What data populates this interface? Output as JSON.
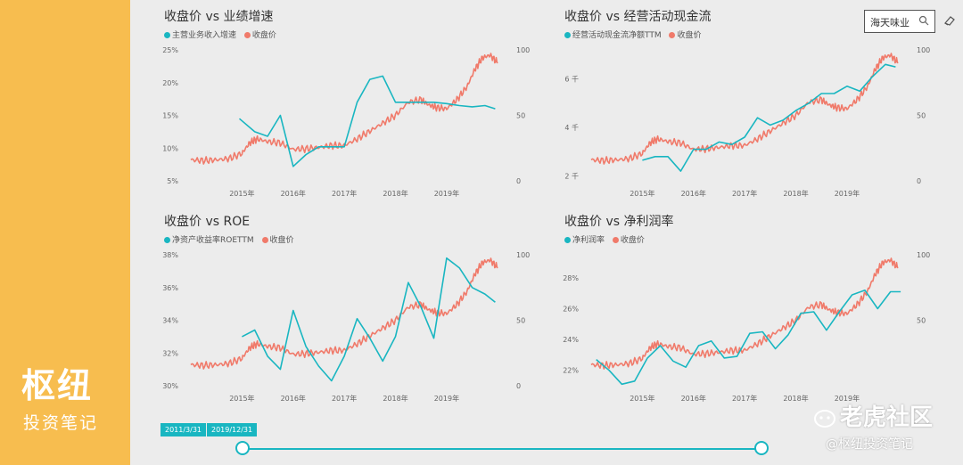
{
  "brand": {
    "title": "枢纽",
    "subtitle": "投资笔记"
  },
  "filter": {
    "value": "海天味业"
  },
  "slider": {
    "start": "2011/3/31",
    "end": "2019/12/31"
  },
  "watermark": {
    "site": "老虎社区",
    "handle": "@枢纽投资笔记"
  },
  "colors": {
    "teal": "#19b6c1",
    "salmon": "#f07a6a"
  },
  "chart_data": [
    {
      "type": "line",
      "title": "收盘价 vs 业绩增速",
      "legend": [
        "主营业务收入增速",
        "收盘价"
      ],
      "x_ticks": [
        "2015年",
        "2016年",
        "2017年",
        "2018年",
        "2019年"
      ],
      "y_left": {
        "ticks": [
          "25%",
          "20%",
          "15%",
          "10%",
          "5%"
        ],
        "min": 5,
        "max": 25
      },
      "y_right": {
        "ticks": [
          "100",
          "50",
          "0"
        ],
        "min": 0,
        "max": 100
      },
      "series": [
        {
          "name": "主营业务收入增速",
          "axis": "left",
          "color": "teal",
          "x": [
            2014.95,
            2015.25,
            2015.5,
            2015.75,
            2016.0,
            2016.25,
            2016.5,
            2016.75,
            2017.0,
            2017.25,
            2017.5,
            2017.75,
            2018.0,
            2018.25,
            2018.5,
            2018.75,
            2019.0,
            2019.25,
            2019.5,
            2019.75,
            2019.95
          ],
          "y": [
            14.5,
            12.5,
            11.8,
            15.0,
            7.2,
            9.0,
            10.2,
            10.2,
            10.2,
            17.0,
            20.5,
            21.0,
            17.0,
            17.0,
            17.0,
            17.0,
            16.8,
            16.5,
            16.3,
            16.5,
            16.0
          ]
        },
        {
          "name": "收盘价",
          "axis": "right",
          "color": "salmon",
          "x": [
            2014.0,
            2014.25,
            2014.5,
            2014.75,
            2015.0,
            2015.15,
            2015.3,
            2015.5,
            2015.75,
            2016.0,
            2016.25,
            2016.5,
            2016.75,
            2017.0,
            2017.25,
            2017.5,
            2017.75,
            2018.0,
            2018.25,
            2018.5,
            2018.65,
            2018.8,
            2019.0,
            2019.2,
            2019.4,
            2019.55,
            2019.7,
            2019.85,
            2020.0
          ],
          "y": [
            16,
            15.5,
            16,
            17,
            21,
            29,
            32,
            30,
            29,
            24,
            24.5,
            25.5,
            27,
            27,
            32,
            38,
            44,
            50,
            60,
            62,
            58,
            56,
            55,
            62,
            72,
            85,
            94,
            96,
            90
          ]
        }
      ]
    },
    {
      "type": "line",
      "title": "收盘价 vs 经营活动现金流",
      "legend": [
        "经营活动现金流净额TTM",
        "收盘价"
      ],
      "x_ticks": [
        "2015年",
        "2016年",
        "2017年",
        "2018年",
        "2019年"
      ],
      "y_left": {
        "ticks": [
          "6 千",
          "4 千",
          "2 千"
        ],
        "min": 1.8,
        "max": 7.2
      },
      "y_right": {
        "ticks": [
          "100",
          "50",
          "0"
        ],
        "min": 0,
        "max": 100
      },
      "series": [
        {
          "name": "经营活动现金流净额TTM",
          "axis": "left",
          "color": "teal",
          "x": [
            2015.0,
            2015.25,
            2015.5,
            2015.75,
            2016.0,
            2016.25,
            2016.5,
            2016.75,
            2017.0,
            2017.25,
            2017.5,
            2017.75,
            2018.0,
            2018.25,
            2018.5,
            2018.75,
            2019.0,
            2019.25,
            2019.5,
            2019.75,
            2019.95
          ],
          "y": [
            2.65,
            2.8,
            2.8,
            2.2,
            3.1,
            3.1,
            3.4,
            3.3,
            3.6,
            4.4,
            4.1,
            4.3,
            4.7,
            5.0,
            5.4,
            5.4,
            5.7,
            5.5,
            6.1,
            6.6,
            6.5
          ]
        },
        {
          "name": "收盘价",
          "axis": "right",
          "color": "salmon",
          "x": [
            2014.0,
            2014.25,
            2014.5,
            2014.75,
            2015.0,
            2015.15,
            2015.3,
            2015.5,
            2015.75,
            2016.0,
            2016.25,
            2016.5,
            2016.75,
            2017.0,
            2017.25,
            2017.5,
            2017.75,
            2018.0,
            2018.25,
            2018.5,
            2018.65,
            2018.8,
            2019.0,
            2019.2,
            2019.4,
            2019.55,
            2019.7,
            2019.85,
            2020.0
          ],
          "y": [
            16,
            15.5,
            16,
            17,
            21,
            29,
            32,
            30,
            29,
            24,
            24.5,
            25.5,
            27,
            27,
            32,
            38,
            44,
            50,
            60,
            62,
            58,
            56,
            55,
            62,
            72,
            85,
            94,
            96,
            90
          ]
        }
      ]
    },
    {
      "type": "line",
      "title": "收盘价 vs ROE",
      "legend": [
        "净资产收益率ROETTM",
        "收盘价"
      ],
      "x_ticks": [
        "2015年",
        "2016年",
        "2017年",
        "2018年",
        "2019年"
      ],
      "y_left": {
        "ticks": [
          "38%",
          "36%",
          "34%",
          "32%",
          "30%"
        ],
        "min": 30,
        "max": 38
      },
      "y_right": {
        "ticks": [
          "100",
          "50",
          "0"
        ],
        "min": 0,
        "max": 100
      },
      "series": [
        {
          "name": "净资产收益率ROETTM",
          "axis": "left",
          "color": "teal",
          "x": [
            2015.0,
            2015.25,
            2015.5,
            2015.75,
            2016.0,
            2016.25,
            2016.5,
            2016.75,
            2017.0,
            2017.25,
            2017.5,
            2017.75,
            2018.0,
            2018.25,
            2018.5,
            2018.75,
            2019.0,
            2019.25,
            2019.5,
            2019.75,
            2019.95
          ],
          "y": [
            33.0,
            33.4,
            31.8,
            31.0,
            34.6,
            32.4,
            31.2,
            30.3,
            31.8,
            34.1,
            32.9,
            31.5,
            33.0,
            36.3,
            34.8,
            32.9,
            37.8,
            37.2,
            36.0,
            35.6,
            35.1
          ]
        },
        {
          "name": "收盘价",
          "axis": "right",
          "color": "salmon",
          "x": [
            2014.0,
            2014.25,
            2014.5,
            2014.75,
            2015.0,
            2015.15,
            2015.3,
            2015.5,
            2015.75,
            2016.0,
            2016.25,
            2016.5,
            2016.75,
            2017.0,
            2017.25,
            2017.5,
            2017.75,
            2018.0,
            2018.25,
            2018.5,
            2018.65,
            2018.8,
            2019.0,
            2019.2,
            2019.4,
            2019.55,
            2019.7,
            2019.85,
            2020.0
          ],
          "y": [
            16,
            15.5,
            16,
            17,
            21,
            29,
            32,
            30,
            29,
            24,
            24.5,
            25.5,
            27,
            27,
            32,
            38,
            44,
            50,
            60,
            62,
            58,
            56,
            55,
            62,
            72,
            85,
            94,
            96,
            90
          ]
        }
      ]
    },
    {
      "type": "line",
      "title": "收盘价 vs 净利润率",
      "legend": [
        "净利润率",
        "收盘价"
      ],
      "x_ticks": [
        "2015年",
        "2016年",
        "2017年",
        "2018年",
        "2019年"
      ],
      "y_left": {
        "ticks": [
          "28%",
          "26%",
          "24%",
          "22%"
        ],
        "min": 21,
        "max": 29.5
      },
      "y_right": {
        "ticks": [
          "100",
          "50"
        ],
        "min": 0,
        "max": 100
      },
      "series": [
        {
          "name": "净利润率",
          "axis": "left",
          "color": "teal",
          "x": [
            2014.1,
            2014.35,
            2014.6,
            2014.85,
            2015.1,
            2015.35,
            2015.6,
            2015.85,
            2016.1,
            2016.35,
            2016.6,
            2016.85,
            2017.1,
            2017.35,
            2017.6,
            2017.85,
            2018.1,
            2018.35,
            2018.6,
            2018.85,
            2019.1,
            2019.35,
            2019.6,
            2019.85,
            2020.05
          ],
          "y": [
            22.7,
            22.0,
            21.1,
            21.3,
            22.8,
            23.6,
            22.6,
            22.2,
            23.6,
            23.9,
            22.8,
            22.9,
            24.4,
            24.5,
            23.4,
            24.3,
            25.7,
            25.8,
            24.6,
            25.8,
            26.9,
            27.2,
            26.0,
            27.1,
            27.1
          ]
        },
        {
          "name": "收盘价",
          "axis": "right",
          "color": "salmon",
          "x": [
            2014.0,
            2014.25,
            2014.5,
            2014.75,
            2015.0,
            2015.15,
            2015.3,
            2015.5,
            2015.75,
            2016.0,
            2016.25,
            2016.5,
            2016.75,
            2017.0,
            2017.25,
            2017.5,
            2017.75,
            2018.0,
            2018.25,
            2018.5,
            2018.65,
            2018.8,
            2019.0,
            2019.2,
            2019.4,
            2019.55,
            2019.7,
            2019.85,
            2020.0
          ],
          "y": [
            16,
            15.5,
            16,
            17,
            21,
            29,
            32,
            30,
            29,
            24,
            24.5,
            25.5,
            27,
            27,
            32,
            38,
            44,
            50,
            60,
            62,
            58,
            56,
            55,
            62,
            72,
            85,
            94,
            96,
            90
          ]
        }
      ]
    }
  ]
}
